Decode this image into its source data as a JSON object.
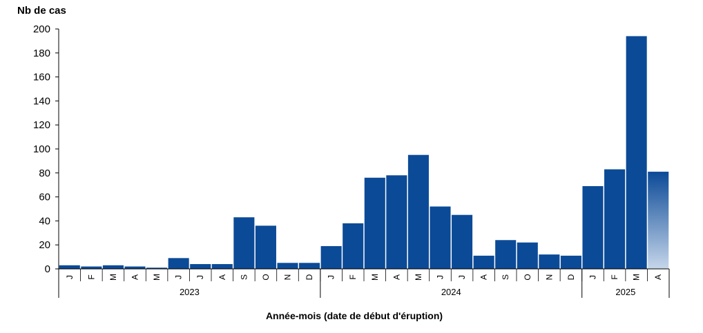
{
  "chart_data": {
    "type": "bar",
    "ylabel": "Nb de cas",
    "xlabel": "Année-mois (date de début d'éruption)",
    "ylim": [
      0,
      200
    ],
    "yticks": [
      "0",
      "20",
      "40",
      "60",
      "80",
      "100",
      "120",
      "140",
      "160",
      "180",
      "200"
    ],
    "grid": false,
    "legend": "none",
    "colors": {
      "bar": "#0b4a97",
      "partial_bar_top": "#0b4a97",
      "partial_bar_bottom": "#c6d6ea",
      "axis": "#000000"
    },
    "years": [
      {
        "label": "2023",
        "count": 12
      },
      {
        "label": "2024",
        "count": 12
      },
      {
        "label": "2025",
        "count": 4
      }
    ],
    "categories": [
      "J",
      "F",
      "M",
      "A",
      "M",
      "J",
      "J",
      "A",
      "S",
      "O",
      "N",
      "D",
      "J",
      "F",
      "M",
      "A",
      "M",
      "J",
      "J",
      "A",
      "S",
      "O",
      "N",
      "D",
      "J",
      "F",
      "M",
      "A"
    ],
    "values": [
      3,
      2,
      3,
      2,
      1,
      9,
      4,
      4,
      43,
      36,
      5,
      5,
      19,
      38,
      76,
      78,
      95,
      52,
      45,
      11,
      24,
      22,
      12,
      11,
      69,
      83,
      194,
      81
    ],
    "partial_index": 27
  }
}
